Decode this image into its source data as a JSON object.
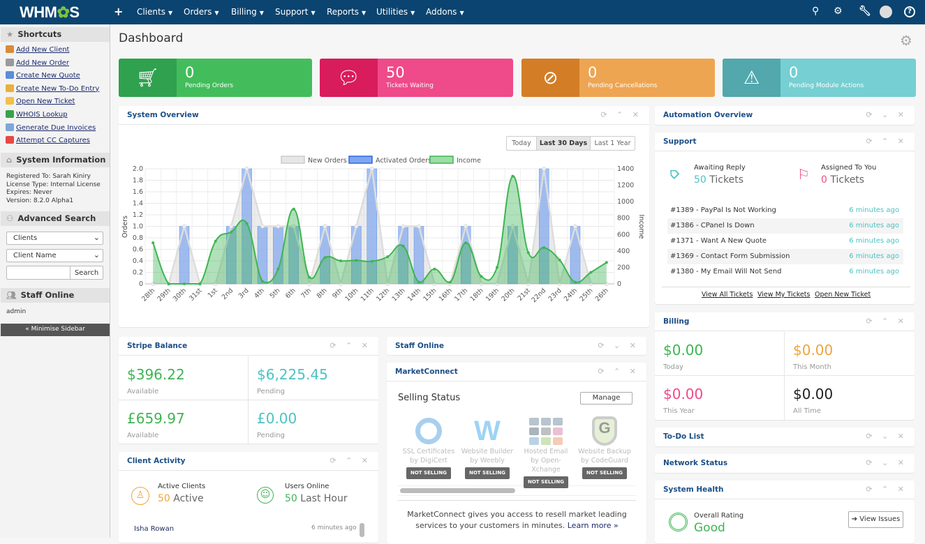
{
  "nav": {
    "logo": "WHMCS",
    "plus": "+",
    "items": [
      "Clients",
      "Orders",
      "Billing",
      "Support",
      "Reports",
      "Utilities",
      "Addons"
    ],
    "icons": [
      "search-icon",
      "settings-icon",
      "wrench-icon",
      "avatar",
      "help-icon"
    ]
  },
  "sidebar": {
    "shortcuts_title": "Shortcuts",
    "shortcuts": [
      {
        "label": "Add New Client",
        "color": "#d98b3a"
      },
      {
        "label": "Add New Order",
        "color": "#9a9a9a"
      },
      {
        "label": "Create New Quote",
        "color": "#5a8ed8"
      },
      {
        "label": "Create New To-Do Entry",
        "color": "#e8b03c"
      },
      {
        "label": "Open New Ticket",
        "color": "#f5c04a"
      },
      {
        "label": "WHOIS Lookup",
        "color": "#3aa34a"
      },
      {
        "label": "Generate Due Invoices",
        "color": "#7da7d9"
      },
      {
        "label": "Attempt CC Captures",
        "color": "#e54848"
      }
    ],
    "sysinfo_title": "System Information",
    "sysinfo": [
      "Registered To: Sarah Kiniry",
      "License Type: Internal License",
      "Expires: Never",
      "Version: 8.2.0 Alpha1"
    ],
    "search_title": "Advanced Search",
    "search_type": "Clients",
    "search_field": "Client Name",
    "search_value": "",
    "search_button": "Search",
    "staff_title": "Staff Online",
    "staff": "admin",
    "minimise": "« Minimise Sidebar"
  },
  "page_title": "Dashboard",
  "stats": [
    {
      "value": "0",
      "label": "Pending Orders",
      "icon": "cart-icon",
      "dark": "#30a14e",
      "light": "#43bd5c"
    },
    {
      "value": "50",
      "label": "Tickets Waiting",
      "icon": "comment-icon",
      "dark": "#d91c5c",
      "light": "#ef4a89"
    },
    {
      "value": "0",
      "label": "Pending Cancellations",
      "icon": "ban-icon",
      "dark": "#d47d27",
      "light": "#eea552"
    },
    {
      "value": "0",
      "label": "Pending Module Actions",
      "icon": "warning-icon",
      "dark": "#52a8ac",
      "light": "#76cfd2"
    }
  ],
  "system_overview": {
    "title": "System Overview",
    "ranges": [
      "Today",
      "Last 30 Days",
      "Last 1 Year"
    ],
    "active_range": "Last 30 Days"
  },
  "chart_data": {
    "type": "bar+line",
    "categories": [
      "28th",
      "29th",
      "30th",
      "31st",
      "1st",
      "2nd",
      "3rd",
      "4th",
      "5th",
      "6th",
      "7th",
      "8th",
      "9th",
      "10th",
      "11th",
      "12th",
      "13th",
      "14th",
      "15th",
      "16th",
      "17th",
      "18th",
      "19th",
      "20th",
      "21st",
      "22nd",
      "23rd",
      "24th",
      "25th",
      "26th"
    ],
    "series": [
      {
        "name": "New Orders",
        "type": "area",
        "axis": "left",
        "color": "#dcdcdc",
        "values": [
          0,
          0,
          1,
          0,
          0,
          1,
          2,
          1,
          1,
          1,
          0,
          1,
          0,
          1,
          2,
          0,
          1,
          1,
          0,
          0,
          1,
          0,
          0,
          1,
          0,
          2,
          0,
          1,
          0,
          0
        ]
      },
      {
        "name": "Activated Orders",
        "type": "bar",
        "axis": "left",
        "color": "#7fa6f0",
        "values": [
          0,
          0,
          1,
          0,
          0,
          1,
          2,
          1,
          1,
          1,
          0,
          1,
          0,
          1,
          2,
          0,
          1,
          1,
          0,
          0,
          1,
          0,
          0,
          1,
          0,
          2,
          0,
          1,
          0,
          0
        ]
      },
      {
        "name": "Income",
        "type": "area",
        "axis": "right",
        "color": "#3db552",
        "values": [
          500,
          0,
          0,
          0,
          520,
          630,
          735,
          30,
          180,
          910,
          80,
          320,
          280,
          285,
          275,
          330,
          460,
          20,
          180,
          20,
          500,
          90,
          200,
          1310,
          380,
          440,
          290,
          20,
          140,
          260
        ]
      }
    ],
    "ylabel": "Orders",
    "y2label": "Income",
    "ylim": [
      0,
      2
    ],
    "y2lim": [
      0,
      1400
    ],
    "yticks": [
      "2.0",
      "1.8",
      "1.6",
      "1.4",
      "1.2",
      "1.0",
      "0.8",
      "0.6",
      "0.4",
      "0.2",
      "0"
    ],
    "y2ticks": [
      "1400",
      "1200",
      "1000",
      "800",
      "600",
      "400",
      "200",
      "0"
    ],
    "grid": true,
    "legend": "top"
  },
  "automation": {
    "title": "Automation Overview"
  },
  "support": {
    "title": "Support",
    "awaiting_label": "Awaiting Reply",
    "awaiting_count": "50",
    "awaiting_unit": "Tickets",
    "assigned_label": "Assigned To You",
    "assigned_count": "0",
    "assigned_unit": "Tickets",
    "tickets": [
      {
        "subject": "#1389 - PayPal Is Not Working",
        "time": "6 minutes ago"
      },
      {
        "subject": "#1386 - CPanel Is Down",
        "time": "6 minutes ago"
      },
      {
        "subject": "#1371 - Want A New Quote",
        "time": "6 minutes ago"
      },
      {
        "subject": "#1369 - Contact Form Submission",
        "time": "6 minutes ago"
      },
      {
        "subject": "#1380 - My Email Will Not Send",
        "time": "6 minutes ago"
      }
    ],
    "links": [
      "View All Tickets",
      "View My Tickets",
      "Open New Ticket"
    ]
  },
  "billing": {
    "title": "Billing",
    "cells": [
      {
        "amount": "$0.00",
        "label": "Today",
        "color": "#3db552"
      },
      {
        "amount": "$0.00",
        "label": "This Month",
        "color": "#f0a43c"
      },
      {
        "amount": "$0.00",
        "label": "This Year",
        "color": "#ef4a89"
      },
      {
        "amount": "$0.00",
        "label": "All Time",
        "color": "#222222"
      }
    ]
  },
  "todo": {
    "title": "To-Do List"
  },
  "network": {
    "title": "Network Status"
  },
  "health": {
    "title": "System Health",
    "label": "Overall Rating",
    "value": "Good",
    "button": "View Issues"
  },
  "stripe": {
    "title": "Stripe Balance",
    "cells": [
      {
        "amount": "$396.22",
        "label": "Available",
        "color": "#3db552"
      },
      {
        "amount": "$6,225.45",
        "label": "Pending",
        "color": "#4cc2c3"
      },
      {
        "amount": "£659.97",
        "label": "Available",
        "color": "#3db552"
      },
      {
        "amount": "£0.00",
        "label": "Pending",
        "color": "#4cc2c3"
      }
    ]
  },
  "client_activity": {
    "title": "Client Activity",
    "active_label": "Active Clients",
    "active_count": "50",
    "active_unit": "Active",
    "online_label": "Users Online",
    "online_count": "50",
    "online_unit": "Last Hour",
    "recent": [
      {
        "name": "Isha Rowan",
        "time": "6 minutes ago"
      }
    ]
  },
  "staff_online": {
    "title": "Staff Online"
  },
  "marketconnect": {
    "title": "MarketConnect",
    "selling_status": "Selling Status",
    "manage": "Manage",
    "products": [
      {
        "name": "SSL Certificates",
        "by": "by DigiCert",
        "status": "NOT SELLING"
      },
      {
        "name": "Website Builder",
        "by": "by Weebly",
        "status": "NOT SELLING"
      },
      {
        "name": "Hosted Email",
        "by": "by Open-Xchange",
        "status": "NOT SELLING"
      },
      {
        "name": "Website Backup",
        "by": "by CodeGuard",
        "status": "NOT SELLING"
      }
    ],
    "description": "MarketConnect gives you access to resell market leading services to your customers in minutes.",
    "learn_more": "Learn more »"
  }
}
